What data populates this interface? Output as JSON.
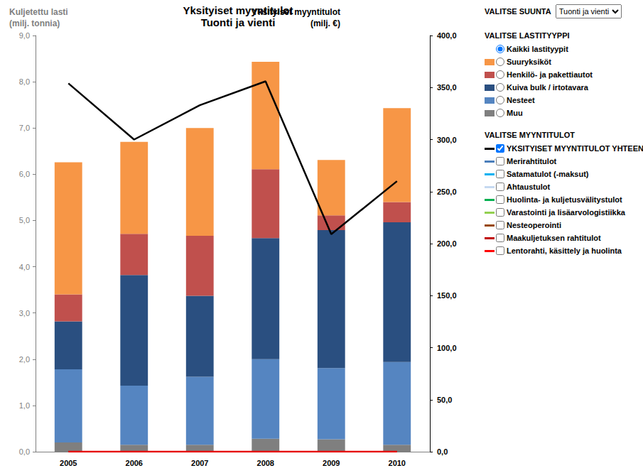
{
  "chart_data": {
    "type": "bar",
    "title": "Yksityiset myyntitulot",
    "subtitle": "Tuonti ja vienti",
    "y_label": "Kuljetettu lasti\n(milj. tonnia)",
    "y2_label": "Yksityiset myyntitulot\n(milj. €)",
    "categories": [
      "2005",
      "2006",
      "2007",
      "2008",
      "2009",
      "2010"
    ],
    "stacked": true,
    "grid": false,
    "ylim": [
      0,
      9
    ],
    "yticks": [
      {
        "value": 0,
        "label": "0,0"
      },
      {
        "value": 1,
        "label": "1,0"
      },
      {
        "value": 2,
        "label": "2,0"
      },
      {
        "value": 3,
        "label": "3,0"
      },
      {
        "value": 4,
        "label": "4,0"
      },
      {
        "value": 5,
        "label": "5,0"
      },
      {
        "value": 6,
        "label": "6,0"
      },
      {
        "value": 7,
        "label": "7,0"
      },
      {
        "value": 8,
        "label": "8,0"
      },
      {
        "value": 9,
        "label": "9,0"
      }
    ],
    "y2lim": [
      0,
      400
    ],
    "y2ticks": [
      {
        "value": 0,
        "label": "0,0"
      },
      {
        "value": 50,
        "label": "50,0"
      },
      {
        "value": 100,
        "label": "100,0"
      },
      {
        "value": 150,
        "label": "150,0"
      },
      {
        "value": 200,
        "label": "200,0"
      },
      {
        "value": 250,
        "label": "250,0"
      },
      {
        "value": 300,
        "label": "300,0"
      },
      {
        "value": 350,
        "label": "350,0"
      },
      {
        "value": 400,
        "label": "400,0"
      }
    ],
    "series": [
      {
        "name": "Muu",
        "type": "bar",
        "color": "#7f7f7f",
        "values": [
          0.2,
          0.15,
          0.15,
          0.28,
          0.27,
          0.15
        ]
      },
      {
        "name": "Nesteet",
        "type": "bar",
        "color": "#5585c1",
        "values": [
          1.58,
          1.28,
          1.47,
          1.72,
          1.54,
          1.79
        ]
      },
      {
        "name": "Kuiva bulk / irtotavara",
        "type": "bar",
        "color": "#2a4f80",
        "values": [
          1.04,
          2.39,
          1.75,
          2.62,
          2.98,
          3.02
        ]
      },
      {
        "name": "Henkilö- ja pakettiautot",
        "type": "bar",
        "color": "#c0504d",
        "values": [
          0.58,
          0.89,
          1.3,
          1.49,
          0.32,
          0.44
        ]
      },
      {
        "name": "Suuryksiköt",
        "type": "bar",
        "color": "#f79646",
        "values": [
          2.86,
          1.99,
          2.33,
          2.32,
          1.2,
          2.03
        ]
      },
      {
        "name": "YKSITYISET MYYNTITULOT YHTEENSÄ",
        "type": "line",
        "axis": "y2",
        "color": "#000000",
        "values": [
          354,
          300,
          333,
          356,
          209,
          260
        ]
      },
      {
        "name": "Lentorahti, käsittely ja huolinta",
        "type": "line",
        "axis": "y2",
        "color": "#e60000",
        "values": [
          0,
          0,
          0,
          0,
          0,
          0
        ]
      }
    ]
  },
  "controls": {
    "direction": {
      "label": "VALITSE SUUNTA",
      "value": "Tuonti ja vienti"
    },
    "cargo": {
      "label": "VALITSE LASTITYYPPI",
      "selected": "Kaikki lastityypit",
      "options": [
        {
          "name": "Kaikki lastityypit"
        },
        {
          "name": "Suuryksiköt",
          "color": "#f79646"
        },
        {
          "name": "Henkilö- ja pakettiautot",
          "color": "#c0504d"
        },
        {
          "name": "Kuiva bulk / irtotavara",
          "color": "#2a4f80"
        },
        {
          "name": "Nesteet",
          "color": "#5585c1"
        },
        {
          "name": "Muu",
          "color": "#7f7f7f"
        }
      ]
    },
    "revenue": {
      "label": "VALITSE MYYNTITULOT",
      "options": [
        {
          "name": "YKSITYISET MYYNTITULOT YHTEENSÄ",
          "color": "#000000",
          "checked": true
        },
        {
          "name": "Merirahtitulot",
          "color": "#4a7ebb",
          "checked": false
        },
        {
          "name": "Satamatulot (-maksut)",
          "color": "#00b0f0",
          "checked": false
        },
        {
          "name": "Ahtaustulot",
          "color": "#c6d9f1",
          "checked": false
        },
        {
          "name": "Huolinta- ja kuljetusvälitystulot",
          "color": "#00b050",
          "checked": false
        },
        {
          "name": "Varastointi ja lisäarvologistiikka",
          "color": "#92d050",
          "checked": false
        },
        {
          "name": "Nesteoperointi",
          "color": "#984807",
          "checked": false
        },
        {
          "name": "Maakuljetuksen rahtitulot",
          "color": "#c00000",
          "checked": false
        },
        {
          "name": "Lentorahti, käsittely ja huolinta",
          "color": "#ff0000",
          "checked": false
        }
      ]
    }
  }
}
